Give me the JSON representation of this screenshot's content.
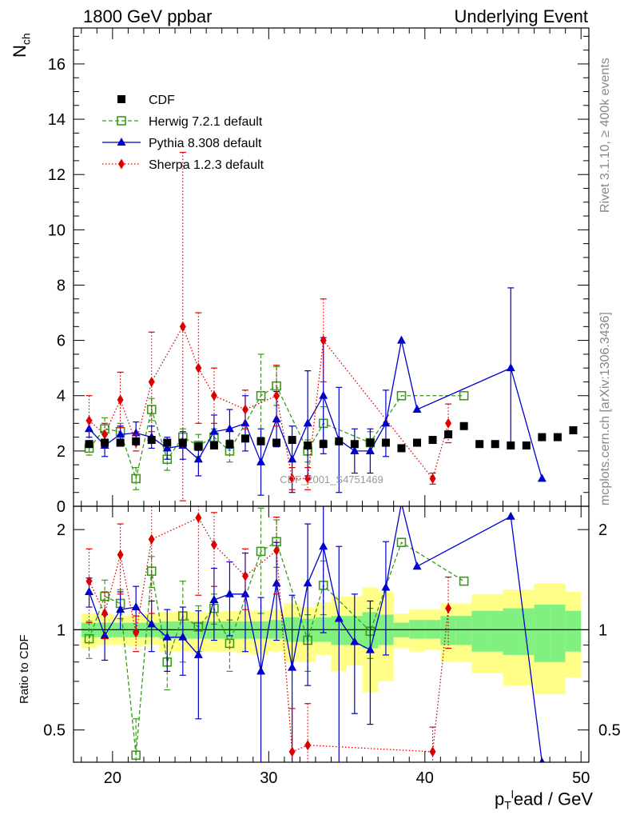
{
  "header": {
    "left_title": "1800 GeV ppbar",
    "right_title": "Underlying Event"
  },
  "side_text": {
    "top": "Rivet 3.1.10, ≥ 400k events",
    "bottom": "mcplots.cern.ch [arXiv:1306.3436]"
  },
  "watermark": "CDF_2001_S4751469",
  "chart_data": [
    {
      "type": "scatter",
      "panel": "main",
      "ylabel_main": "N",
      "ylabel_sub": "ch",
      "xlim": [
        17.5,
        50.5
      ],
      "ylim": [
        0,
        17.3
      ],
      "yticks": [
        0,
        2,
        4,
        6,
        8,
        10,
        12,
        14,
        16
      ],
      "legend_position": "top-left",
      "series": [
        {
          "name": "CDF",
          "color": "#000000",
          "marker": "filled-square",
          "line": "none",
          "x": [
            18.5,
            19.5,
            20.5,
            21.5,
            22.5,
            23.5,
            24.5,
            25.5,
            26.5,
            27.5,
            28.5,
            29.5,
            30.5,
            31.5,
            32.5,
            33.5,
            34.5,
            35.5,
            36.5,
            37.5,
            38.5,
            39.5,
            40.5,
            41.5,
            42.5,
            43.5,
            44.5,
            45.5,
            46.5,
            47.5,
            48.5,
            49.5
          ],
          "y": [
            2.25,
            2.3,
            2.3,
            2.35,
            2.4,
            2.3,
            2.3,
            2.15,
            2.2,
            2.25,
            2.45,
            2.35,
            2.3,
            2.4,
            2.2,
            2.25,
            2.35,
            2.25,
            2.3,
            2.3,
            2.1,
            2.3,
            2.4,
            2.6,
            2.9,
            2.25,
            2.25,
            2.2,
            2.2,
            2.5,
            2.5,
            2.75
          ]
        },
        {
          "name": "Herwig 7.2.1 default",
          "color": "#3a9a1a",
          "marker": "open-square",
          "line": "dashed",
          "x": [
            18.5,
            19.5,
            20.5,
            21.5,
            22.5,
            23.5,
            24.5,
            25.5,
            26.5,
            27.5,
            29.5,
            30.5,
            32.5,
            33.5,
            36.5,
            38.5,
            42.5
          ],
          "y": [
            2.1,
            2.8,
            2.7,
            1.0,
            3.5,
            1.7,
            2.5,
            2.2,
            2.5,
            2.0,
            4.0,
            4.35,
            2.0,
            3.0,
            2.3,
            4.0,
            4.0
          ],
          "err": [
            0.25,
            0.4,
            0.3,
            0.4,
            0.4,
            0.4,
            0.3,
            0.4,
            0.3,
            0.4,
            1.5,
            0.7,
            0.4,
            0.6,
            0.4,
            0,
            0
          ]
        },
        {
          "name": "Pythia 8.308 default",
          "color": "#0000cc",
          "marker": "filled-triangle",
          "line": "solid",
          "x": [
            18.5,
            19.5,
            20.5,
            21.5,
            22.5,
            23.5,
            24.5,
            25.5,
            26.5,
            27.5,
            28.5,
            29.5,
            30.5,
            31.5,
            32.5,
            33.5,
            34.5,
            35.5,
            36.5,
            37.5,
            38.5,
            39.5,
            45.5,
            47.5
          ],
          "y": [
            2.8,
            2.2,
            2.6,
            2.65,
            2.5,
            2.1,
            2.2,
            1.7,
            2.7,
            2.8,
            3.0,
            1.6,
            3.15,
            1.7,
            3.0,
            4.0,
            2.4,
            2.0,
            2.0,
            3.0,
            6.0,
            3.5,
            5.0,
            1.0
          ],
          "err": [
            0.3,
            0.4,
            0.3,
            0.4,
            0.4,
            0.4,
            0.5,
            0.6,
            0.6,
            0.7,
            1.0,
            1.2,
            1.0,
            1.2,
            1.9,
            2.1,
            1.9,
            0.8,
            0.8,
            1.2,
            0,
            0,
            2.9,
            0
          ]
        },
        {
          "name": "Sherpa 1.2.3 default",
          "color": "#dd0000",
          "marker": "filled-diamond",
          "line": "dotted",
          "x": [
            18.5,
            19.5,
            20.5,
            21.5,
            22.5,
            24.5,
            25.5,
            26.5,
            28.5,
            30.5,
            31.5,
            32.5,
            33.5,
            40.5,
            41.5
          ],
          "y": [
            3.1,
            2.6,
            3.85,
            2.3,
            4.5,
            6.5,
            5.0,
            4.0,
            3.5,
            4.0,
            1.0,
            1.0,
            6.0,
            1.0,
            3.0
          ],
          "err": [
            0.9,
            0.4,
            1.0,
            0.3,
            1.8,
            6.3,
            2.0,
            1.0,
            0.7,
            1.1,
            0.4,
            0.4,
            1.5,
            0.2,
            0.7
          ]
        }
      ]
    },
    {
      "type": "scatter",
      "panel": "ratio",
      "ylabel": "Ratio to CDF",
      "xlabel_main": "p",
      "xlabel_sub": "T",
      "xlabel_sup": "l",
      "xlabel_rest": "ead / GeV",
      "xlim": [
        17.5,
        50.5
      ],
      "ylim": [
        0.4,
        2.35
      ],
      "log_y": true,
      "yticks": [
        0.5,
        1,
        2
      ],
      "xticks": [
        20,
        30,
        40,
        50
      ],
      "bands": {
        "bin_edges": [
          18,
          19,
          20,
          21,
          22,
          23,
          24,
          25,
          26,
          27,
          28,
          29,
          30,
          31,
          32,
          33,
          34,
          35,
          36,
          37,
          38,
          39,
          40,
          41,
          42,
          43,
          44,
          45,
          46,
          47,
          48,
          49,
          50
        ],
        "outer_color": "#ffff88",
        "inner_color": "#80f080",
        "outer_lo": [
          0.88,
          0.9,
          0.9,
          0.89,
          0.9,
          0.86,
          0.86,
          0.86,
          0.86,
          0.86,
          0.85,
          0.84,
          0.86,
          0.8,
          0.8,
          0.84,
          0.75,
          0.78,
          0.65,
          0.7,
          0.88,
          0.86,
          0.87,
          0.8,
          0.8,
          0.74,
          0.74,
          0.68,
          0.68,
          0.64,
          0.64,
          0.72
        ],
        "outer_hi": [
          1.12,
          1.12,
          1.1,
          1.11,
          1.12,
          1.13,
          1.14,
          1.13,
          1.13,
          1.14,
          1.14,
          1.14,
          1.15,
          1.2,
          1.17,
          1.21,
          1.26,
          1.26,
          1.34,
          1.3,
          1.12,
          1.15,
          1.15,
          1.2,
          1.2,
          1.28,
          1.28,
          1.32,
          1.32,
          1.38,
          1.38,
          1.3
        ],
        "inner_lo": [
          0.95,
          0.95,
          0.95,
          0.95,
          0.95,
          0.94,
          0.94,
          0.94,
          0.94,
          0.94,
          0.94,
          0.94,
          0.94,
          0.92,
          0.92,
          0.92,
          0.9,
          0.9,
          0.88,
          0.9,
          0.95,
          0.94,
          0.94,
          0.9,
          0.9,
          0.86,
          0.86,
          0.84,
          0.84,
          0.8,
          0.8,
          0.86
        ],
        "inner_hi": [
          1.05,
          1.05,
          1.05,
          1.05,
          1.05,
          1.06,
          1.06,
          1.06,
          1.06,
          1.06,
          1.06,
          1.06,
          1.07,
          1.09,
          1.08,
          1.09,
          1.1,
          1.1,
          1.13,
          1.11,
          1.05,
          1.07,
          1.07,
          1.1,
          1.1,
          1.14,
          1.14,
          1.16,
          1.16,
          1.19,
          1.19,
          1.14
        ]
      },
      "series": [
        {
          "name": "Herwig 7.2.1 default",
          "color": "#3a9a1a",
          "marker": "open-square",
          "line": "dashed",
          "x": [
            18.5,
            19.5,
            20.5,
            21.5,
            22.5,
            23.5,
            24.5,
            25.5,
            26.5,
            27.5,
            29.5,
            30.5,
            32.5,
            33.5,
            36.5,
            38.5,
            42.5
          ],
          "y": [
            0.94,
            1.26,
            1.2,
            0.42,
            1.5,
            0.8,
            1.1,
            1.02,
            1.16,
            0.91,
            1.72,
            1.84,
            0.93,
            1.36,
            0.99,
            1.83,
            1.4
          ],
          "err": [
            0.12,
            0.15,
            0.12,
            0.12,
            0.16,
            0.14,
            0.3,
            0.16,
            0.12,
            0.16,
            0.6,
            0.3,
            0.18,
            0.25,
            0.17,
            0,
            0
          ]
        },
        {
          "name": "Pythia 8.308 default",
          "color": "#0000cc",
          "marker": "filled-triangle",
          "line": "solid",
          "x": [
            18.5,
            19.5,
            20.5,
            21.5,
            22.5,
            23.5,
            24.5,
            25.5,
            26.5,
            27.5,
            28.5,
            29.5,
            30.5,
            31.5,
            32.5,
            33.5,
            34.5,
            35.5,
            36.5,
            37.5,
            38.5,
            39.5,
            45.5,
            47.5
          ],
          "y": [
            1.3,
            0.96,
            1.15,
            1.17,
            1.04,
            0.95,
            0.95,
            0.84,
            1.23,
            1.28,
            1.28,
            0.75,
            1.38,
            0.77,
            1.38,
            1.78,
            1.08,
            0.92,
            0.87,
            1.34,
            2.4,
            1.55,
            2.19,
            0.4
          ],
          "err": [
            0.13,
            0.15,
            0.15,
            0.18,
            0.18,
            0.2,
            0.22,
            0.3,
            0.3,
            0.32,
            0.42,
            0.5,
            0.45,
            0.5,
            0.7,
            0.8,
            0.7,
            0.36,
            0.35,
            0.5,
            0,
            0,
            0,
            0
          ]
        },
        {
          "name": "Sherpa 1.2.3 default",
          "color": "#dd0000",
          "marker": "filled-diamond",
          "line": "dotted",
          "x": [
            18.5,
            19.5,
            20.5,
            21.5,
            22.5,
            25.5,
            26.5,
            28.5,
            30.5,
            31.5,
            32.5,
            40.5,
            41.5
          ],
          "y": [
            1.4,
            1.12,
            1.68,
            0.98,
            1.87,
            2.17,
            1.8,
            1.45,
            1.73,
            0.43,
            0.45,
            0.43,
            1.16
          ],
          "err": [
            0.35,
            0.18,
            0.4,
            0.12,
            0.75,
            0.9,
            0.45,
            0.3,
            0.45,
            0.15,
            0.15,
            0.08,
            0.28
          ]
        }
      ]
    }
  ]
}
